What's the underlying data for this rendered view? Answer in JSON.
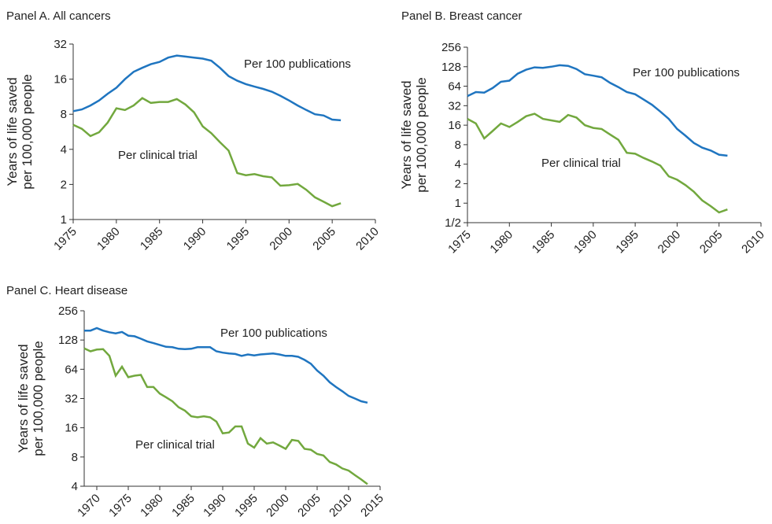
{
  "chart_data": [
    {
      "type": "line",
      "title": "Panel A. All cancers",
      "ylabel": [
        "Years of life saved",
        "per 100,000 people"
      ],
      "x": [
        1975,
        1976,
        1977,
        1978,
        1979,
        1980,
        1981,
        1982,
        1983,
        1984,
        1985,
        1986,
        1987,
        1988,
        1989,
        1990,
        1991,
        1992,
        1993,
        1994,
        1995,
        1996,
        1997,
        1998,
        1999,
        2000,
        2001,
        2002,
        2003,
        2004,
        2005,
        2006
      ],
      "xlim": [
        1975,
        2010
      ],
      "xticks": [
        1975,
        1980,
        1985,
        1990,
        1995,
        2000,
        2005,
        2010
      ],
      "ylim": [
        1,
        32
      ],
      "yticks": [
        1,
        2,
        4,
        8,
        16,
        32
      ],
      "log_scale": true,
      "series": [
        {
          "name": "Per 100 publications",
          "color": "#1f75c0",
          "values": [
            8.5,
            8.8,
            9.5,
            10.5,
            12,
            13.5,
            16,
            18.5,
            20,
            21.5,
            22.5,
            24.5,
            25.5,
            25,
            24.5,
            24,
            23,
            20,
            17,
            15.5,
            14.5,
            13.8,
            13.2,
            12.5,
            11.5,
            10.5,
            9.5,
            8.7,
            8,
            7.8,
            7.2,
            7.1
          ]
        },
        {
          "name": "Per clinical trial",
          "color": "#72a83e",
          "values": [
            6.5,
            6,
            5.2,
            5.6,
            6.8,
            9,
            8.7,
            9.5,
            11,
            10,
            10.2,
            10.2,
            10.8,
            9.7,
            8.3,
            6.3,
            5.5,
            4.6,
            3.9,
            2.5,
            2.4,
            2.45,
            2.35,
            2.3,
            1.95,
            1.97,
            2.02,
            1.8,
            1.55,
            1.42,
            1.3,
            1.38
          ]
        }
      ]
    },
    {
      "type": "line",
      "title": "Panel B. Breast cancer",
      "ylabel": [
        "Years of life saved",
        "per 100,000 people"
      ],
      "x": [
        1975,
        1976,
        1977,
        1978,
        1979,
        1980,
        1981,
        1982,
        1983,
        1984,
        1985,
        1986,
        1987,
        1988,
        1989,
        1990,
        1991,
        1992,
        1993,
        1994,
        1995,
        1996,
        1997,
        1998,
        1999,
        2000,
        2001,
        2002,
        2003,
        2004,
        2005,
        2006
      ],
      "xlim": [
        1975,
        2010
      ],
      "xticks": [
        1975,
        1980,
        1985,
        1990,
        1995,
        2000,
        2005,
        2010
      ],
      "ylim": [
        0.5,
        256
      ],
      "yticks": [
        {
          "value": 0.5,
          "label": "1/2"
        },
        1,
        2,
        4,
        8,
        16,
        32,
        64,
        128,
        256
      ],
      "log_scale": true,
      "series": [
        {
          "name": "Per 100 publications",
          "color": "#1f75c0",
          "values": [
            45,
            52,
            51,
            60,
            75,
            78,
            100,
            115,
            125,
            123,
            128,
            135,
            132,
            118,
            98,
            93,
            88,
            72,
            62,
            52,
            48,
            40,
            33,
            26,
            20,
            14,
            11,
            8.5,
            7.2,
            6.5,
            5.6,
            5.4
          ]
        },
        {
          "name": "Per clinical trial",
          "color": "#72a83e",
          "values": [
            20,
            17,
            10,
            13,
            17,
            15,
            18,
            22,
            24,
            20,
            19,
            18,
            23,
            21,
            16,
            14.5,
            14,
            11.5,
            9.5,
            6,
            5.8,
            5,
            4.4,
            3.8,
            2.6,
            2.3,
            1.9,
            1.5,
            1.1,
            0.9,
            0.72,
            0.8
          ]
        }
      ]
    },
    {
      "type": "line",
      "title": "Panel C. Heart disease",
      "ylabel": [
        "Years of life saved",
        "per 100,000 people"
      ],
      "x": [
        1968,
        1969,
        1970,
        1971,
        1972,
        1973,
        1974,
        1975,
        1976,
        1977,
        1978,
        1979,
        1980,
        1981,
        1982,
        1983,
        1984,
        1985,
        1986,
        1987,
        1988,
        1989,
        1990,
        1991,
        1992,
        1993,
        1994,
        1995,
        1996,
        1997,
        1998,
        1999,
        2000,
        2001,
        2002,
        2003,
        2004,
        2005,
        2006,
        2007,
        2008,
        2009,
        2010,
        2011,
        2012,
        2013
      ],
      "xlim": [
        1968,
        2015
      ],
      "xticks": [
        1970,
        1975,
        1980,
        1985,
        1990,
        1995,
        2000,
        2005,
        2010,
        2015
      ],
      "ylim": [
        4,
        256
      ],
      "yticks": [
        4,
        8,
        16,
        32,
        64,
        128,
        256
      ],
      "log_scale": true,
      "series": [
        {
          "name": "Per 100 publications",
          "color": "#1f75c0",
          "values": [
            160,
            160,
            170,
            160,
            154,
            150,
            155,
            142,
            140,
            132,
            124,
            119,
            114,
            109,
            108,
            104,
            103,
            104,
            108,
            108,
            108,
            98,
            95,
            93,
            92,
            88,
            91,
            89,
            91,
            92,
            93,
            91,
            88,
            88,
            86,
            80,
            73,
            62,
            55,
            47,
            42,
            38,
            34,
            32,
            30,
            29
          ]
        },
        {
          "name": "Per clinical trial",
          "color": "#72a83e",
          "values": [
            105,
            98,
            102,
            103,
            88,
            55,
            68,
            53,
            55,
            56,
            42,
            42,
            36,
            33,
            30,
            26,
            24,
            21,
            20.5,
            21,
            20.5,
            18.5,
            14,
            14.3,
            16.5,
            16.5,
            11,
            10,
            12.5,
            11,
            11.3,
            10.5,
            9.7,
            12,
            11.7,
            9.7,
            9.5,
            8.6,
            8.3,
            7.1,
            6.7,
            6.1,
            5.8,
            5.2,
            4.7,
            4.2
          ]
        }
      ]
    }
  ]
}
